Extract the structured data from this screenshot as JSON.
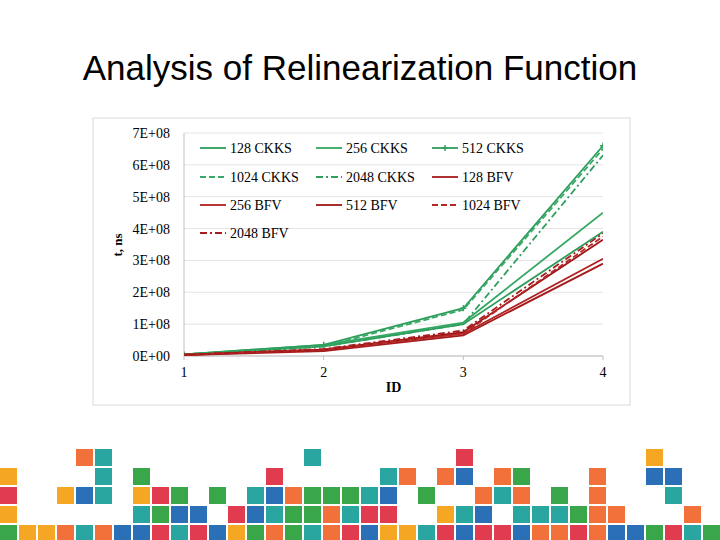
{
  "chart_data": {
    "type": "line",
    "title": "Analysis of Relinearization Function",
    "x_label": "ID",
    "y_label": "t, ns",
    "categories": [
      "1",
      "2",
      "3",
      "4"
    ],
    "series": [
      {
        "name": "128 CKKS",
        "color": "#2a9d58",
        "line_style": "solid",
        "values": [
          5000000,
          30000000,
          100000000,
          390000000
        ]
      },
      {
        "name": "256 CKKS",
        "color": "#33a862",
        "line_style": "solid",
        "values": [
          5000000,
          35000000,
          105000000,
          450000000
        ]
      },
      {
        "name": "512 CKKS",
        "color": "#2e9e5b",
        "line_style": "solid",
        "marker": "plus",
        "values": [
          5000000,
          35000000,
          150000000,
          660000000
        ]
      },
      {
        "name": "1024 CKKS",
        "color": "#3aa868",
        "line_style": "dashed",
        "values": [
          5000000,
          30000000,
          145000000,
          650000000
        ]
      },
      {
        "name": "2048 CKKS",
        "color": "#2f9f60",
        "line_style": "dashdot",
        "values": [
          5000000,
          30000000,
          100000000,
          630000000
        ]
      },
      {
        "name": "128 BFV",
        "color": "#a61b1b",
        "line_style": "solid",
        "values": [
          3000000,
          15000000,
          65000000,
          290000000
        ]
      },
      {
        "name": "256 BFV",
        "color": "#b02020",
        "line_style": "solid",
        "values": [
          3000000,
          20000000,
          70000000,
          305000000
        ]
      },
      {
        "name": "512 BFV",
        "color": "#9e1515",
        "line_style": "solid",
        "values": [
          4000000,
          20000000,
          75000000,
          365000000
        ]
      },
      {
        "name": "1024 BFV",
        "color": "#b52626",
        "line_style": "dashed",
        "values": [
          4000000,
          20000000,
          70000000,
          375000000
        ]
      },
      {
        "name": "2048 BFV",
        "color": "#a81e1e",
        "line_style": "dashdot",
        "values": [
          4000000,
          22000000,
          80000000,
          385000000
        ]
      }
    ],
    "ylim": [
      0,
      700000000
    ],
    "yticks": [
      {
        "value": 0,
        "label": "0E+00"
      },
      {
        "value": 100000000,
        "label": "1E+08"
      },
      {
        "value": 200000000,
        "label": "2E+08"
      },
      {
        "value": 300000000,
        "label": "3E+08"
      },
      {
        "value": 400000000,
        "label": "4E+08"
      },
      {
        "value": 500000000,
        "label": "5E+08"
      },
      {
        "value": 600000000,
        "label": "6E+08"
      },
      {
        "value": 700000000,
        "label": "7E+08"
      }
    ],
    "grid": true,
    "legend": "top"
  }
}
